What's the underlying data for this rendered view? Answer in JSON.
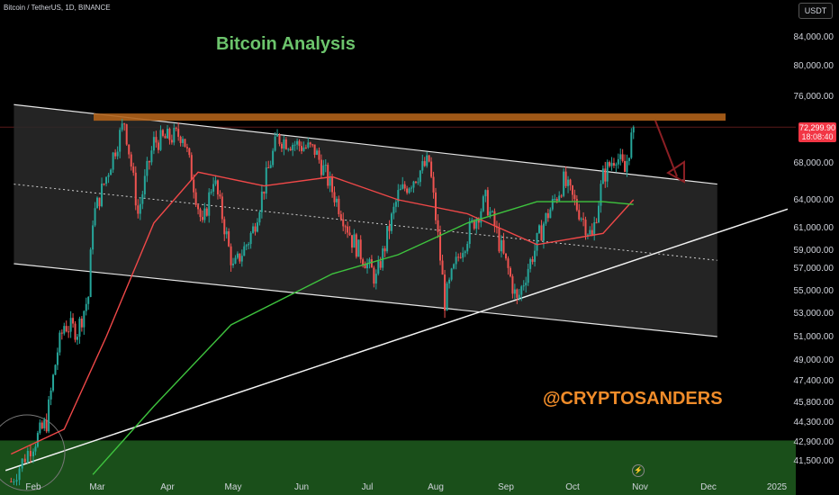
{
  "header": {
    "symbol": "Bitcoin / TetherUS, 1D, BINANCE",
    "currency": "USDT"
  },
  "price_badge": {
    "price": "72,299.90",
    "countdown": "18:08:40"
  },
  "icons": {
    "flash": "lightning-icon"
  },
  "colors": {
    "background": "#000000",
    "up_candle": "#26a69a",
    "down_candle": "#ef5350",
    "ma_short": "#f04848",
    "ma_long": "#3ec33e",
    "resistance": "#b0621a",
    "support_zone": "#1f5d1f",
    "title": "#6cc46c",
    "watermark": "#f08c2a"
  },
  "chart_data": {
    "type": "candlestick",
    "title": "Bitcoin Analysis",
    "annotation": "@CRYPTOSANDERS",
    "x_ticks": [
      "Feb",
      "Mar",
      "Apr",
      "May",
      "Jun",
      "Jul",
      "Aug",
      "Sep",
      "Oct",
      "Nov",
      "Dec",
      "2025"
    ],
    "y_ticks": [
      "84,000.00",
      "80,000.00",
      "76,000.00",
      "68,000.00",
      "64,000.00",
      "61,000.00",
      "59,000.00",
      "57,000.00",
      "55,000.00",
      "53,000.00",
      "51,000.00",
      "49,000.00",
      "47,400.00",
      "45,800.00",
      "44,300.00",
      "42,900.00",
      "41,500.00"
    ],
    "last_price": 72299.9,
    "resistance_level": 73500,
    "support_zone": [
      40500,
      43000
    ],
    "channel": {
      "upper_start": {
        "date": "2024-01-25",
        "price": 75000
      },
      "upper_end": {
        "date": "2024-12-05",
        "price": 65700
      },
      "lower_start": {
        "date": "2024-01-25",
        "price": 57500
      },
      "lower_end": {
        "date": "2024-12-05",
        "price": 51000
      }
    },
    "trendline": {
      "start": {
        "date": "2024-01-22",
        "price": 40800
      },
      "end": {
        "date": "2025-01-05",
        "price": 63000
      }
    },
    "series_close": [
      {
        "date": "2024-01-24",
        "close": 40000
      },
      {
        "date": "2024-01-31",
        "close": 42500
      },
      {
        "date": "2024-02-07",
        "close": 44300
      },
      {
        "date": "2024-02-12",
        "close": 49800
      },
      {
        "date": "2024-02-15",
        "close": 52000
      },
      {
        "date": "2024-02-21",
        "close": 51500
      },
      {
        "date": "2024-02-26",
        "close": 54500
      },
      {
        "date": "2024-02-28",
        "close": 62000
      },
      {
        "date": "2024-03-05",
        "close": 66500
      },
      {
        "date": "2024-03-13",
        "close": 73000
      },
      {
        "date": "2024-03-19",
        "close": 62500
      },
      {
        "date": "2024-03-26",
        "close": 70500
      },
      {
        "date": "2024-04-08",
        "close": 71500
      },
      {
        "date": "2024-04-17",
        "close": 61000
      },
      {
        "date": "2024-04-22",
        "close": 66500
      },
      {
        "date": "2024-05-01",
        "close": 57000
      },
      {
        "date": "2024-05-10",
        "close": 60800
      },
      {
        "date": "2024-05-21",
        "close": 71000
      },
      {
        "date": "2024-06-07",
        "close": 69500
      },
      {
        "date": "2024-06-24",
        "close": 60000
      },
      {
        "date": "2024-07-05",
        "close": 56000
      },
      {
        "date": "2024-07-15",
        "close": 64500
      },
      {
        "date": "2024-07-29",
        "close": 68200
      },
      {
        "date": "2024-08-05",
        "close": 54000
      },
      {
        "date": "2024-08-12",
        "close": 59000
      },
      {
        "date": "2024-08-23",
        "close": 64000
      },
      {
        "date": "2024-09-06",
        "close": 54000
      },
      {
        "date": "2024-09-18",
        "close": 61500
      },
      {
        "date": "2024-09-27",
        "close": 66000
      },
      {
        "date": "2024-10-10",
        "close": 60000
      },
      {
        "date": "2024-10-15",
        "close": 66500
      },
      {
        "date": "2024-10-21",
        "close": 69000
      },
      {
        "date": "2024-10-25",
        "close": 67000
      },
      {
        "date": "2024-10-29",
        "close": 72299.9
      }
    ],
    "ma_short": [
      {
        "date": "2024-01-24",
        "value": 42000
      },
      {
        "date": "2024-02-15",
        "value": 43800
      },
      {
        "date": "2024-03-05",
        "value": 51000
      },
      {
        "date": "2024-03-26",
        "value": 61500
      },
      {
        "date": "2024-04-15",
        "value": 67000
      },
      {
        "date": "2024-05-15",
        "value": 65500
      },
      {
        "date": "2024-06-15",
        "value": 66500
      },
      {
        "date": "2024-07-15",
        "value": 64000
      },
      {
        "date": "2024-08-15",
        "value": 62500
      },
      {
        "date": "2024-09-15",
        "value": 59500
      },
      {
        "date": "2024-10-15",
        "value": 60500
      },
      {
        "date": "2024-10-29",
        "value": 64000
      }
    ],
    "ma_long": [
      {
        "date": "2024-02-28",
        "value": 40500
      },
      {
        "date": "2024-03-26",
        "value": 45500
      },
      {
        "date": "2024-04-30",
        "value": 52000
      },
      {
        "date": "2024-06-15",
        "value": 56500
      },
      {
        "date": "2024-07-15",
        "value": 58500
      },
      {
        "date": "2024-08-15",
        "value": 61500
      },
      {
        "date": "2024-09-15",
        "value": 63800
      },
      {
        "date": "2024-10-15",
        "value": 63800
      },
      {
        "date": "2024-10-29",
        "value": 63500
      }
    ]
  }
}
